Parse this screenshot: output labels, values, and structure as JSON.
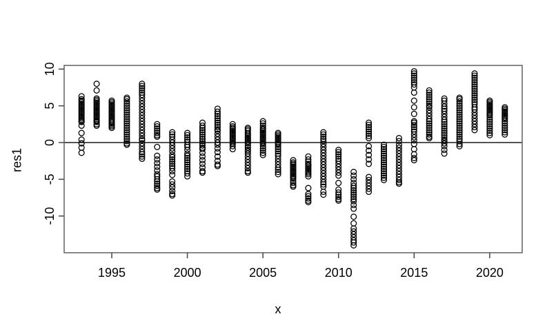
{
  "figure": {
    "background": "#ffffff",
    "box_color": "#6b6b6b",
    "tick_color": "#454545",
    "zero_line_color": "#1a1a1a",
    "point_color": "#000000"
  },
  "chart_data": {
    "type": "scatter",
    "title": "",
    "xlabel": "x",
    "ylabel": "res1",
    "marker": "open-circle",
    "grid": false,
    "legend": "none",
    "x_ticks": [
      1995,
      2000,
      2005,
      2010,
      2015,
      2020
    ],
    "y_ticks": [
      -10,
      -5,
      0,
      5,
      10
    ],
    "xlim": [
      1991.85,
      2022.15
    ],
    "ylim": [
      -15.0,
      10.5
    ],
    "reference_line_y": 0,
    "series": [
      {
        "name": "res1",
        "points": [
          {
            "x": 1993,
            "values": [
              6.3,
              5.9,
              5.7,
              5.5,
              5.3,
              5.1,
              4.9,
              4.7,
              4.5,
              4.3,
              4.1,
              3.9,
              3.7,
              3.5,
              3.3,
              3.1,
              2.9,
              2.8,
              2.3,
              1.3,
              0.4,
              -0.1,
              -0.7,
              -1.4
            ]
          },
          {
            "x": 1994,
            "values": [
              8.0,
              7.1,
              6.0,
              5.8,
              5.6,
              5.4,
              5.2,
              5.0,
              4.8,
              4.6,
              4.4,
              4.2,
              4.0,
              3.8,
              3.6,
              3.4,
              3.2,
              3.0,
              2.9,
              2.8,
              2.5,
              2.3
            ]
          },
          {
            "x": 1995,
            "values": [
              5.7,
              5.5,
              5.3,
              5.1,
              4.9,
              4.7,
              4.5,
              4.3,
              4.1,
              3.9,
              3.7,
              3.5,
              3.3,
              3.1,
              2.9,
              2.8,
              2.6,
              2.4,
              2.2,
              2.0
            ]
          },
          {
            "x": 1996,
            "values": [
              6.1,
              5.9,
              5.6,
              5.3,
              5.0,
              4.7,
              4.4,
              4.1,
              3.8,
              3.5,
              3.2,
              2.9,
              2.6,
              2.3,
              2.0,
              1.7,
              1.4,
              1.1,
              0.8,
              0.5,
              0.2,
              -0.1,
              -0.3
            ]
          },
          {
            "x": 1997,
            "values": [
              8.0,
              7.7,
              7.4,
              7.1,
              6.8,
              6.5,
              6.1,
              5.7,
              5.3,
              4.9,
              4.5,
              4.1,
              3.7,
              3.3,
              2.9,
              2.5,
              2.1,
              1.7,
              1.3,
              0.9,
              0.5,
              0.3,
              -0.1,
              -0.5,
              -0.9,
              -1.3,
              -1.6,
              -1.9,
              -2.2
            ]
          },
          {
            "x": 1998,
            "values": [
              2.5,
              2.2,
              1.9,
              1.6,
              1.3,
              1.0,
              0.8,
              -0.6,
              -1.8,
              -2.3,
              -2.8,
              -3.3,
              -3.8,
              -4.3,
              -4.6,
              -5.0,
              -5.3,
              -5.6,
              -5.9,
              -6.2,
              -6.4
            ]
          },
          {
            "x": 1999,
            "values": [
              1.4,
              1.1,
              0.8,
              0.4,
              0.0,
              -0.4,
              -0.8,
              -1.2,
              -1.7,
              -2.0,
              -2.3,
              -2.6,
              -2.9,
              -3.2,
              -3.5,
              -3.9,
              -4.4,
              -5.3,
              -5.7,
              -6.1,
              -6.6,
              -7.0,
              -7.2
            ]
          },
          {
            "x": 2000,
            "values": [
              1.3,
              1.0,
              0.7,
              0.4,
              0.1,
              -0.3,
              -0.6,
              -1.0,
              -1.5,
              -1.8,
              -2.1,
              -2.4,
              -2.7,
              -3.0,
              -3.3,
              -3.6,
              -3.9,
              -4.2,
              -4.6
            ]
          },
          {
            "x": 2001,
            "values": [
              2.7,
              2.3,
              2.0,
              1.7,
              1.4,
              1.1,
              0.8,
              0.5,
              0.2,
              -0.1,
              -0.4,
              -0.7,
              -0.9,
              -1.4,
              -1.9,
              -2.4,
              -2.9,
              -3.4,
              -3.9,
              -4.1
            ]
          },
          {
            "x": 2002,
            "values": [
              4.6,
              4.2,
              3.9,
              3.6,
              3.3,
              3.0,
              2.7,
              2.4,
              2.1,
              1.8,
              1.6,
              1.2,
              0.8,
              0.4,
              0.0,
              -0.3,
              -0.8,
              -1.3,
              -1.9,
              -2.5,
              -3.0,
              -3.2
            ]
          },
          {
            "x": 2003,
            "values": [
              2.5,
              2.2,
              2.0,
              1.8,
              1.6,
              1.4,
              1.2,
              1.0,
              0.8,
              0.6,
              0.4,
              0.2,
              0.0,
              -0.2,
              -0.5,
              -0.9
            ]
          },
          {
            "x": 2004,
            "values": [
              2.0,
              1.8,
              1.6,
              1.3,
              1.1,
              0.9,
              0.7,
              0.5,
              0.3,
              0.1,
              -0.1,
              -0.4,
              -0.7,
              -1.0,
              -1.2,
              -1.5,
              -1.9,
              -2.3,
              -2.7,
              -3.1,
              -3.5,
              -3.9,
              -4.1
            ]
          },
          {
            "x": 2005,
            "values": [
              2.9,
              2.6,
              2.3,
              2.0,
              1.8,
              1.6,
              1.4,
              1.2,
              1.0,
              0.8,
              0.6,
              0.4,
              0.2,
              0.0,
              -0.2,
              -0.5,
              -0.8,
              -1.1,
              -1.4,
              -1.7
            ]
          },
          {
            "x": 2006,
            "values": [
              1.3,
              1.1,
              0.9,
              0.7,
              0.5,
              0.3,
              0.1,
              -0.1,
              -0.3,
              -0.6,
              -0.9,
              -1.2,
              -1.5,
              -1.8,
              -2.2,
              -2.6,
              -3.0,
              -3.4,
              -3.7,
              -4.0,
              -4.3
            ]
          },
          {
            "x": 2007,
            "values": [
              -2.4,
              -2.7,
              -2.9,
              -3.1,
              -3.3,
              -3.5,
              -3.7,
              -3.9,
              -4.1,
              -4.3,
              -4.5,
              -4.7,
              -4.9,
              -5.2,
              -5.5,
              -5.8,
              -6.0
            ]
          },
          {
            "x": 2008,
            "values": [
              -1.9,
              -2.3,
              -2.6,
              -2.9,
              -3.1,
              -3.3,
              -3.5,
              -3.7,
              -3.9,
              -4.1,
              -4.3,
              -4.6,
              -6.2,
              -7.0,
              -7.3,
              -7.6,
              -7.9,
              -8.1
            ]
          },
          {
            "x": 2009,
            "values": [
              1.4,
              1.1,
              0.8,
              0.5,
              0.2,
              -0.2,
              -0.6,
              -1.0,
              -1.4,
              -1.8,
              -2.2,
              -2.6,
              -3.0,
              -3.4,
              -3.8,
              -4.2,
              -4.6,
              -5.0,
              -5.4,
              -5.7,
              -6.0,
              -6.7,
              -7.1
            ]
          },
          {
            "x": 2010,
            "values": [
              -1.0,
              -1.3,
              -1.6,
              -1.9,
              -2.2,
              -2.5,
              -2.9,
              -3.3,
              -3.7,
              -4.1,
              -4.5,
              -5.5,
              -6.4,
              -6.8,
              -7.1,
              -7.4,
              -7.7,
              -7.9
            ]
          },
          {
            "x": 2011,
            "values": [
              -4.0,
              -4.5,
              -5.0,
              -5.5,
              -5.9,
              -6.2,
              -6.5,
              -6.8,
              -7.1,
              -7.4,
              -7.7,
              -8.0,
              -8.5,
              -9.0,
              -10.1,
              -11.0,
              -11.7,
              -12.1,
              -12.5,
              -12.9,
              -13.3,
              -13.6,
              -14.0
            ]
          },
          {
            "x": 2012,
            "values": [
              2.7,
              2.4,
              2.1,
              1.8,
              1.5,
              1.2,
              0.9,
              0.6,
              -0.5,
              -1.1,
              -1.7,
              -2.3,
              -2.9,
              -4.7,
              -5.1,
              -5.5,
              -5.9,
              -6.3,
              -6.7
            ]
          },
          {
            "x": 2013,
            "values": [
              -0.3,
              -0.6,
              -0.9,
              -1.2,
              -1.5,
              -1.8,
              -2.1,
              -2.4,
              -2.7,
              -3.0,
              -3.3,
              -3.6,
              -3.9,
              -4.2,
              -4.5,
              -4.8,
              -5.1
            ]
          },
          {
            "x": 2014,
            "values": [
              0.6,
              0.2,
              -0.3,
              -0.7,
              -1.1,
              -1.5,
              -1.9,
              -2.3,
              -2.7,
              -3.1,
              -3.5,
              -3.9,
              -4.3,
              -4.7,
              -5.1,
              -5.4,
              -5.6
            ]
          },
          {
            "x": 2015,
            "values": [
              9.7,
              9.4,
              9.1,
              8.8,
              8.5,
              8.2,
              7.9,
              7.5,
              6.8,
              5.7,
              4.8,
              3.9,
              2.9,
              2.7,
              2.4,
              2.1,
              1.8,
              1.5,
              1.1,
              0.7,
              0.3,
              -0.2,
              -0.9,
              -1.6,
              -2.1,
              -2.4
            ]
          },
          {
            "x": 2016,
            "values": [
              7.1,
              6.8,
              6.5,
              6.2,
              5.9,
              5.6,
              5.3,
              5.0,
              4.8,
              4.4,
              4.0,
              3.6,
              3.2,
              2.9,
              2.6,
              2.3,
              2.0,
              1.7,
              1.4,
              1.1,
              0.8,
              0.6
            ]
          },
          {
            "x": 2017,
            "values": [
              6.0,
              5.7,
              5.3,
              4.9,
              4.6,
              4.3,
              3.9,
              3.5,
              3.1,
              2.8,
              2.5,
              2.2,
              1.9,
              1.6,
              1.3,
              1.0,
              0.7,
              0.4,
              0.2,
              -0.1,
              -0.5,
              -1.0,
              -1.5
            ]
          },
          {
            "x": 2018,
            "values": [
              6.1,
              5.9,
              5.6,
              5.3,
              5.0,
              4.7,
              4.4,
              4.1,
              3.8,
              3.5,
              3.2,
              2.9,
              2.6,
              2.3,
              2.0,
              1.7,
              1.4,
              1.1,
              0.8,
              0.5,
              0.2,
              -0.2,
              -0.5
            ]
          },
          {
            "x": 2019,
            "values": [
              9.4,
              9.1,
              8.8,
              8.5,
              8.2,
              7.9,
              7.6,
              7.3,
              7.0,
              6.7,
              6.4,
              6.1,
              5.8,
              5.5,
              5.2,
              4.8,
              4.5,
              4.1,
              3.7,
              3.3,
              2.9,
              2.5,
              2.1,
              1.7
            ]
          },
          {
            "x": 2020,
            "values": [
              5.7,
              5.5,
              5.3,
              5.1,
              4.9,
              4.7,
              4.5,
              4.3,
              4.1,
              3.9,
              3.7,
              3.4,
              3.1,
              2.8,
              2.5,
              2.2,
              1.9,
              1.6,
              1.3,
              1.0
            ]
          },
          {
            "x": 2021,
            "values": [
              4.8,
              4.6,
              4.4,
              4.2,
              4.0,
              3.8,
              3.6,
              3.4,
              3.2,
              2.9,
              2.6,
              2.3,
              2.0,
              1.7,
              1.4,
              1.1
            ]
          }
        ]
      }
    ]
  }
}
